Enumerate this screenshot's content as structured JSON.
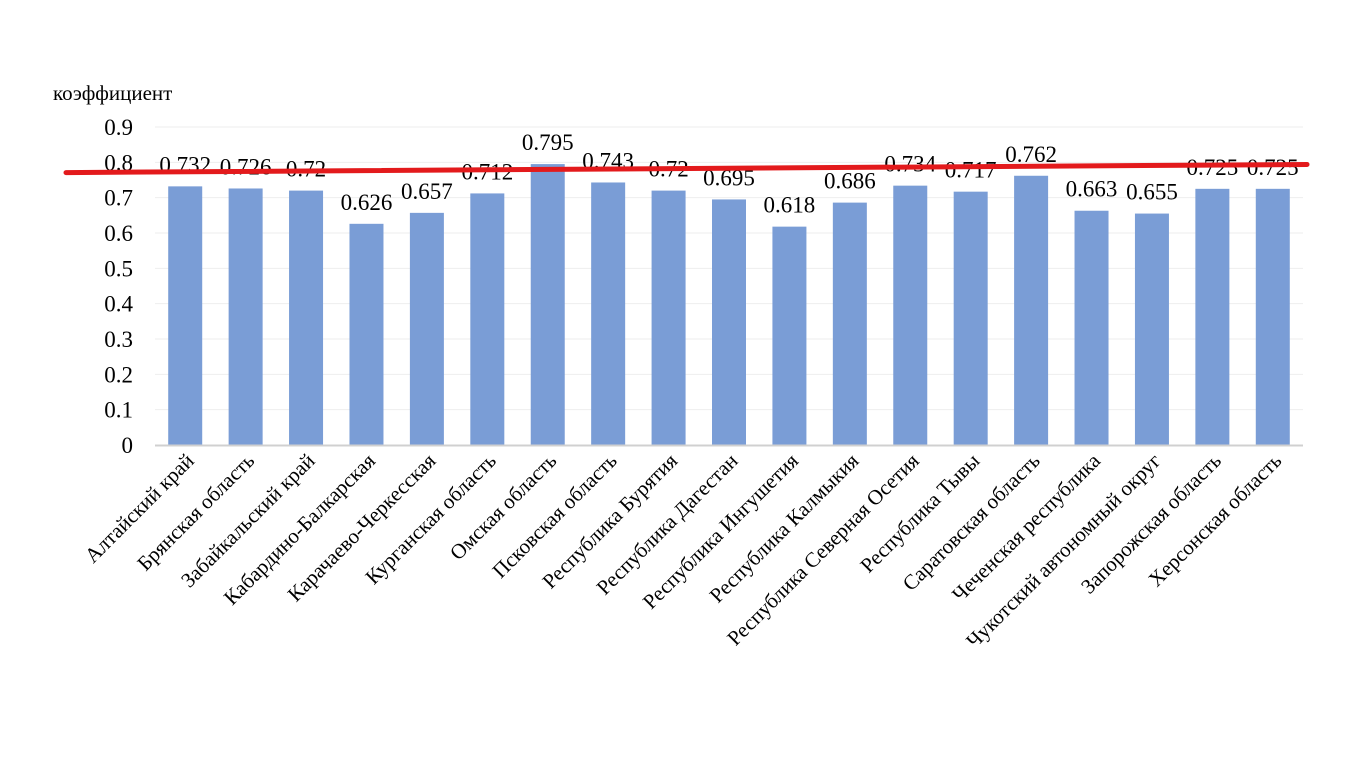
{
  "chart_data": {
    "type": "bar",
    "ylabel": "коэффициент",
    "ylim": [
      0,
      0.9
    ],
    "y_ticks": [
      0,
      0.1,
      0.2,
      0.3,
      0.4,
      0.5,
      0.6,
      0.7,
      0.8,
      0.9
    ],
    "y_tick_labels": [
      "0",
      "0.1",
      "0.2",
      "0.3",
      "0.4",
      "0.5",
      "0.6",
      "0.7",
      "0.8",
      "0.9"
    ],
    "grid": true,
    "categories": [
      "Алтайский край",
      "Брянская область",
      "Забайкальский край",
      "Кабардино-Балкарская",
      "Карачаево-Черкесская",
      "Курганская область",
      "Омская область",
      "Псковская область",
      "Республика Бурятия",
      "Республика Дагестан",
      "Республика Ингушетия",
      "Республика Калмыкия",
      "Республика Северная Осетия",
      "Республика Тывы",
      "Саратовская область",
      "Чеченская республика",
      "Чукотский автономный округ",
      "Запорожская область",
      "Херсонская область"
    ],
    "values": [
      0.732,
      0.726,
      0.72,
      0.626,
      0.657,
      0.712,
      0.795,
      0.743,
      0.72,
      0.695,
      0.618,
      0.686,
      0.734,
      0.717,
      0.762,
      0.663,
      0.655,
      0.725,
      0.725
    ],
    "value_labels": [
      "0.732",
      "0.726",
      "0.72",
      "0.626",
      "0.657",
      "0.712",
      "0.795",
      "0.743",
      "0.72",
      "0.695",
      "0.618",
      "0.686",
      "0.734",
      "0.717",
      "0.762",
      "0.663",
      "0.655",
      "0.725",
      "0.725"
    ],
    "bar_color": "#7a9dd6",
    "reference_line": {
      "color": "#e31a1c",
      "y_start": 0.771,
      "y_end": 0.794
    }
  }
}
